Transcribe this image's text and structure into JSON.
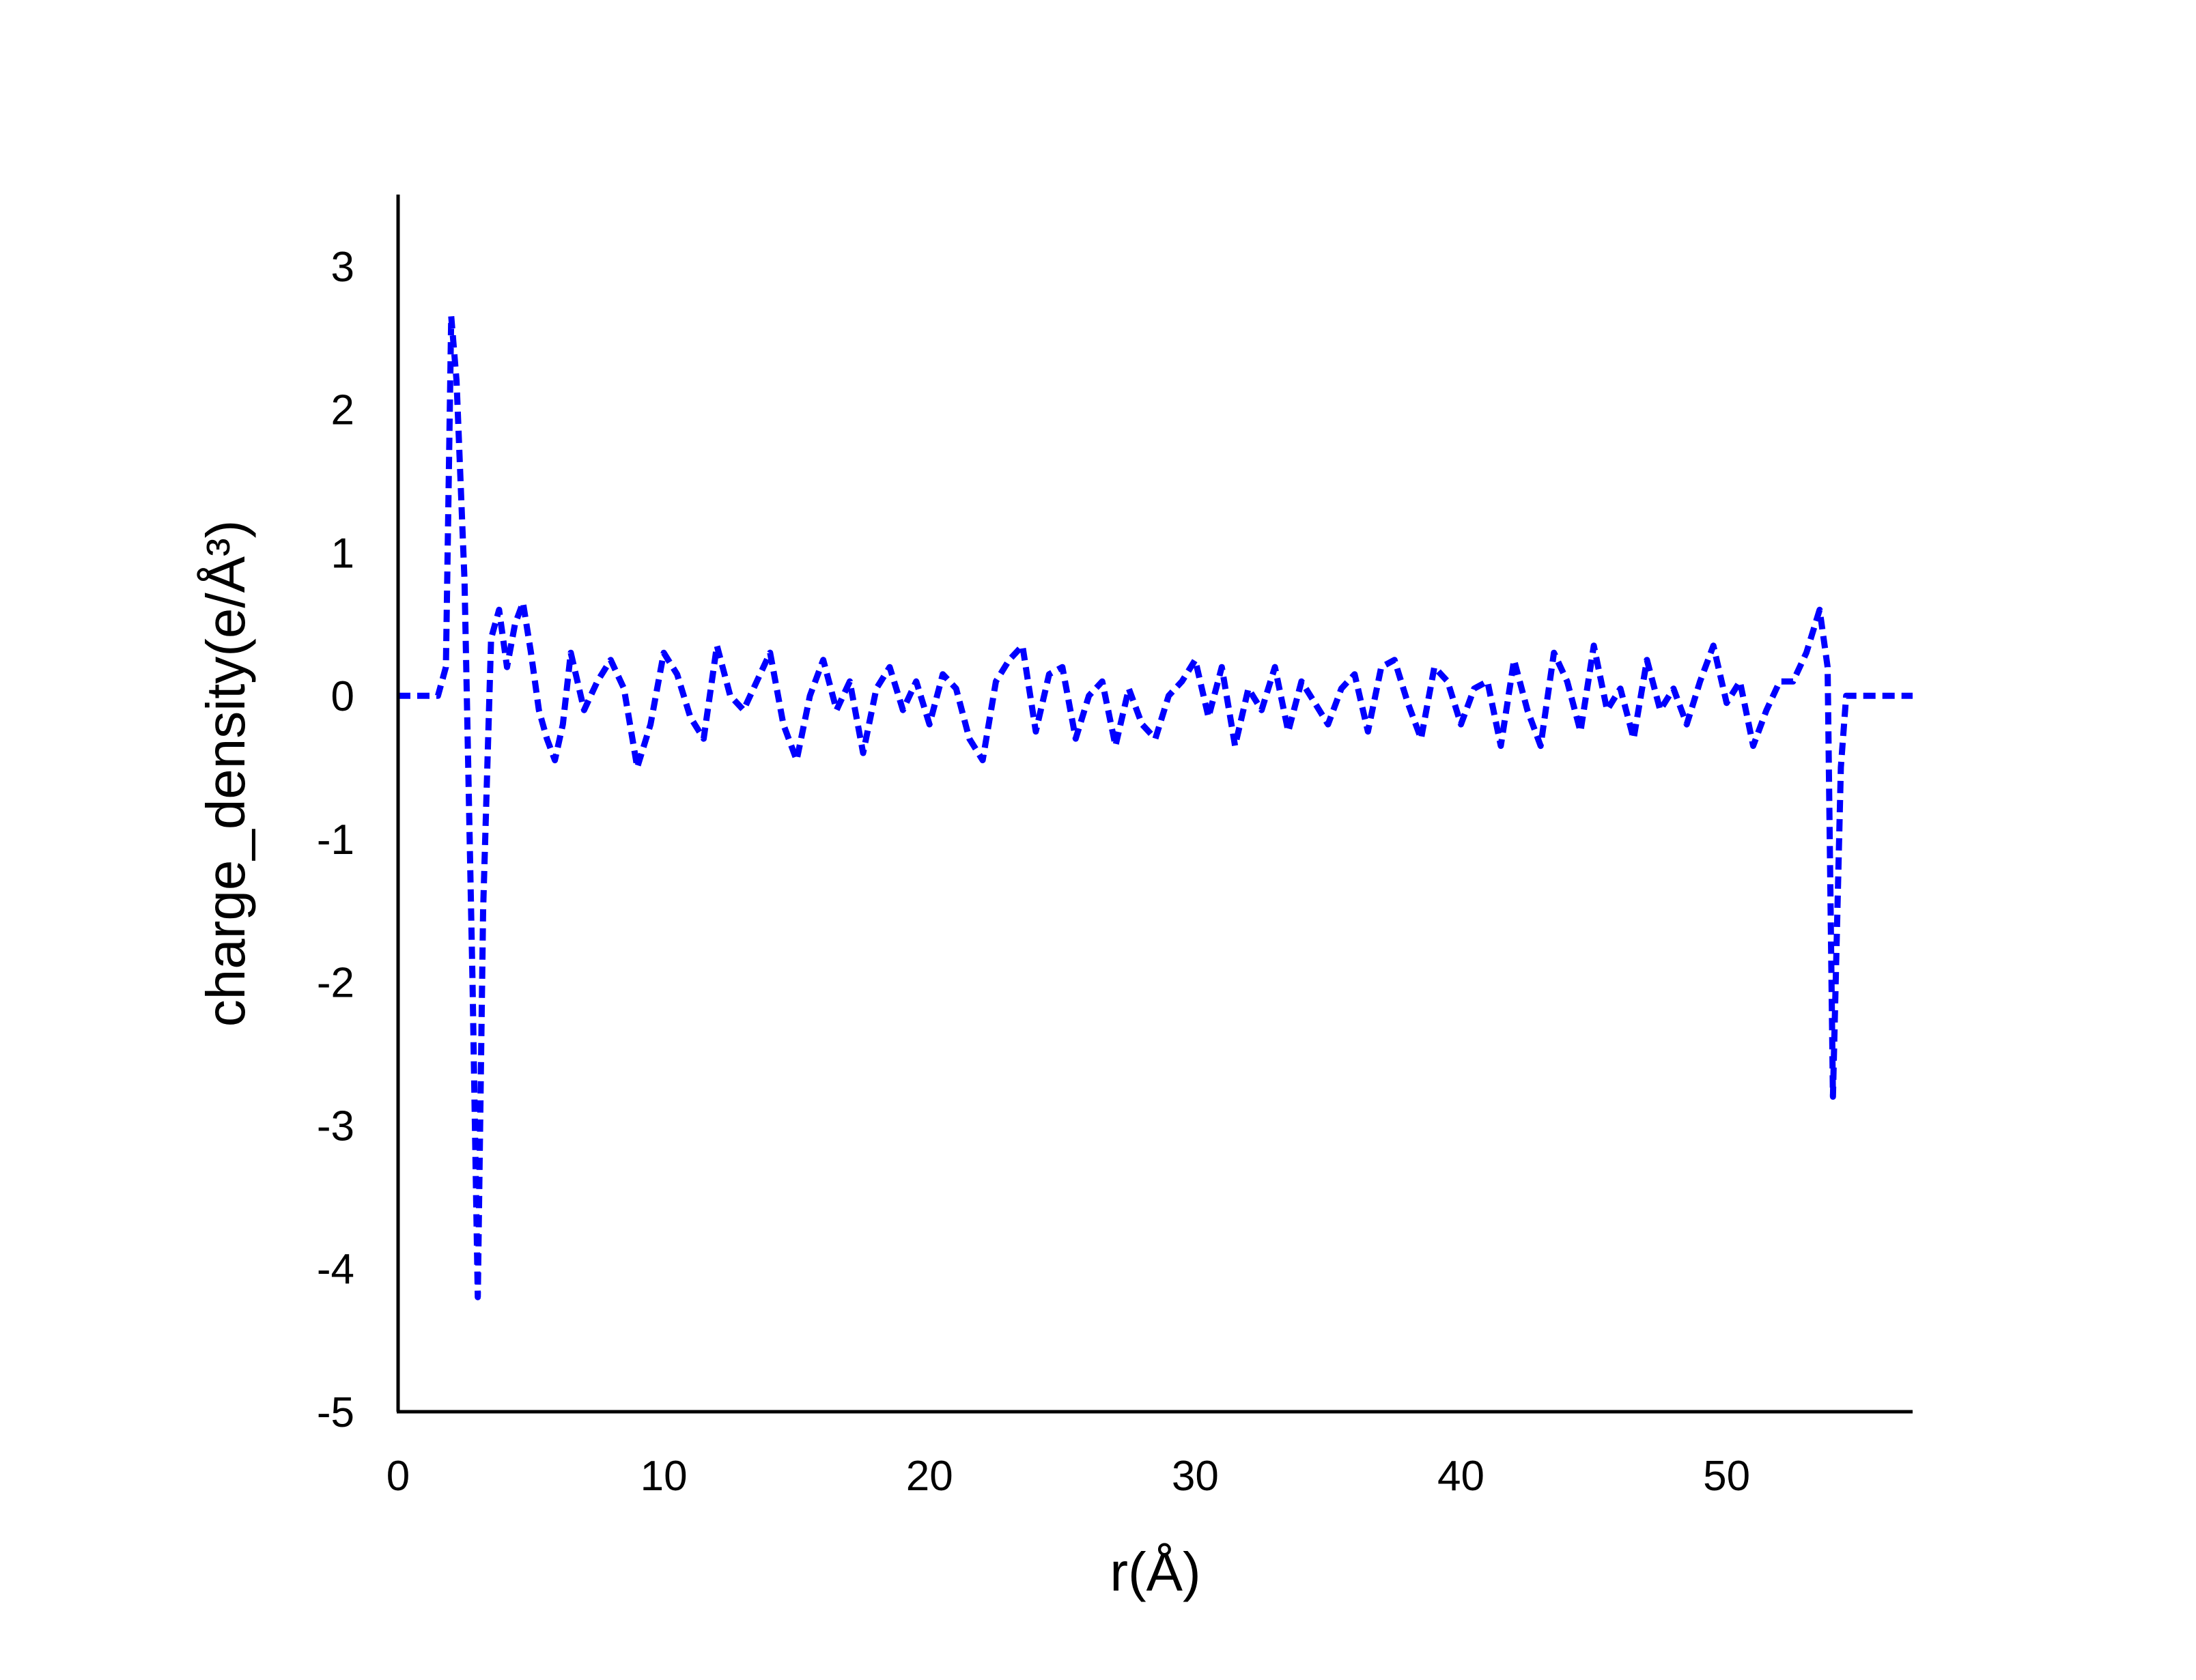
{
  "chart_data": {
    "type": "line",
    "xlabel": "r(Å)",
    "ylabel": "charge_density(e/Å³)",
    "xlim": [
      0,
      57
    ],
    "ylim": [
      -5,
      3.5
    ],
    "xticks": [
      0,
      10,
      20,
      30,
      40,
      50
    ],
    "yticks": [
      -5,
      -4,
      -3,
      -2,
      -1,
      0,
      1,
      2,
      3
    ],
    "line_style": "dashed",
    "series": [
      {
        "color": "#0000ff",
        "x": [
          0,
          0.5,
          1,
          1.5,
          1.8,
          2,
          2.2,
          2.5,
          2.8,
          3,
          3.2,
          3.5,
          3.8,
          4.1,
          4.4,
          4.7,
          5,
          5.3,
          5.6,
          5.9,
          6.2,
          6.5,
          7,
          7.5,
          8,
          8.5,
          9,
          9.5,
          10,
          10.5,
          11,
          11.5,
          12,
          12.5,
          13,
          13.5,
          14,
          14.5,
          15,
          15.5,
          16,
          16.5,
          17,
          17.5,
          18,
          18.5,
          19,
          19.5,
          20,
          20.5,
          21,
          21.5,
          22,
          22.5,
          23,
          23.5,
          24,
          24.5,
          25,
          25.5,
          26,
          26.5,
          27,
          27.5,
          28,
          28.5,
          29,
          29.5,
          30,
          30.5,
          31,
          31.5,
          32,
          32.5,
          33,
          33.5,
          34,
          34.5,
          35,
          35.5,
          36,
          36.5,
          37,
          37.5,
          38,
          38.5,
          39,
          39.5,
          40,
          40.5,
          41,
          41.5,
          42,
          42.5,
          43,
          43.5,
          44,
          44.5,
          45,
          45.5,
          46,
          46.5,
          47,
          47.5,
          48,
          48.5,
          49,
          49.5,
          50,
          50.5,
          51,
          51.5,
          52,
          52.5,
          53,
          53.5,
          53.8,
          54,
          54.3,
          54.5,
          55,
          56,
          57
        ],
        "values": [
          0,
          0,
          0,
          0,
          0.2,
          2.65,
          2.2,
          0.8,
          -2,
          -4.2,
          -1.5,
          0.4,
          0.6,
          0.2,
          0.5,
          0.65,
          0.3,
          -0.1,
          -0.3,
          -0.45,
          -0.2,
          0.3,
          -0.1,
          0.1,
          0.25,
          0.05,
          -0.5,
          -0.2,
          0.3,
          0.15,
          -0.15,
          -0.3,
          0.35,
          0,
          -0.1,
          0.1,
          0.3,
          -0.2,
          -0.45,
          0,
          0.25,
          -0.1,
          0.1,
          -0.4,
          0.05,
          0.2,
          -0.1,
          0.1,
          -0.2,
          0.15,
          0.05,
          -0.3,
          -0.45,
          0.1,
          0.25,
          0.35,
          -0.25,
          0.15,
          0.2,
          -0.3,
          0,
          0.1,
          -0.35,
          0.05,
          -0.2,
          -0.3,
          0,
          0.1,
          0.25,
          -0.15,
          0.2,
          -0.35,
          0.05,
          -0.1,
          0.2,
          -0.25,
          0.1,
          -0.05,
          -0.2,
          0.05,
          0.15,
          -0.25,
          0.2,
          0.25,
          -0.05,
          -0.3,
          0.2,
          0.1,
          -0.2,
          0.05,
          0.1,
          -0.35,
          0.25,
          -0.1,
          -0.35,
          0.3,
          0.1,
          -0.25,
          0.35,
          -0.1,
          0.05,
          -0.3,
          0.25,
          -0.1,
          0.05,
          -0.2,
          0.1,
          0.35,
          -0.05,
          0.1,
          -0.35,
          -0.1,
          0.1,
          0.1,
          0.3,
          0.6,
          0.2,
          -2.8,
          -0.5,
          0,
          0,
          0,
          0
        ]
      }
    ]
  }
}
